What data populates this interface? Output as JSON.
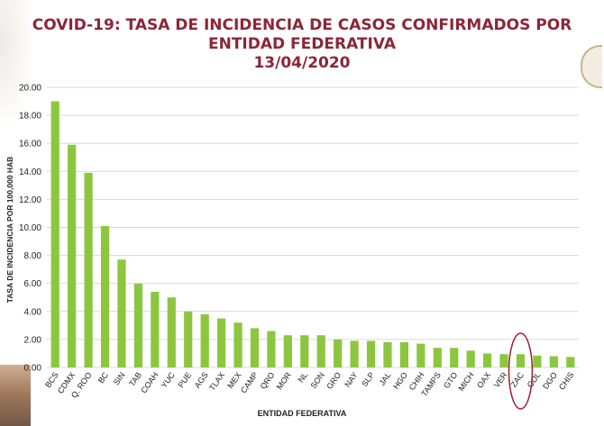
{
  "header": {
    "title_line1": "COVID-19: TASA DE INCIDENCIA DE CASOS CONFIRMADOS POR",
    "title_line2": "ENTIDAD FEDERATIVA",
    "date": "13/04/2020"
  },
  "colors": {
    "bar": "#8cc63f",
    "title": "#8c2637",
    "grid": "#d9d9d9",
    "highlight_circle": "#a01e2c"
  },
  "chart_data": {
    "type": "bar",
    "title": "COVID-19: TASA DE INCIDENCIA DE CASOS CONFIRMADOS POR ENTIDAD FEDERATIVA 13/04/2020",
    "xlabel": "ENTIDAD FEDERATIVA",
    "ylabel": "TASA DE INCIDENCIA POR 100,000 HAB",
    "ylim": [
      0,
      20
    ],
    "yticks": [
      "0.00",
      "2.00",
      "4.00",
      "6.00",
      "8.00",
      "10.00",
      "12.00",
      "14.00",
      "16.00",
      "18.00",
      "20.00"
    ],
    "grid": true,
    "categories": [
      "BCS",
      "CDMX",
      "Q. ROO",
      "BC",
      "SIN",
      "TAB",
      "COAH",
      "YUC",
      "PUE",
      "AGS",
      "TLAX",
      "MEX",
      "CAMP",
      "QRO",
      "MOR",
      "NL",
      "SON",
      "GRO",
      "NAY",
      "SLP",
      "JAL",
      "HGO",
      "CHIH",
      "TAMPS",
      "GTO",
      "MICH",
      "OAX",
      "VER",
      "ZAC",
      "COL",
      "DGO",
      "CHIS"
    ],
    "values": [
      19.0,
      15.9,
      13.9,
      10.1,
      7.7,
      6.0,
      5.4,
      5.0,
      4.0,
      3.8,
      3.5,
      3.2,
      2.8,
      2.6,
      2.3,
      2.3,
      2.3,
      2.0,
      1.9,
      1.9,
      1.8,
      1.8,
      1.7,
      1.4,
      1.4,
      1.2,
      1.0,
      0.95,
      0.95,
      0.85,
      0.8,
      0.75
    ],
    "highlighted_category": "ZAC"
  }
}
